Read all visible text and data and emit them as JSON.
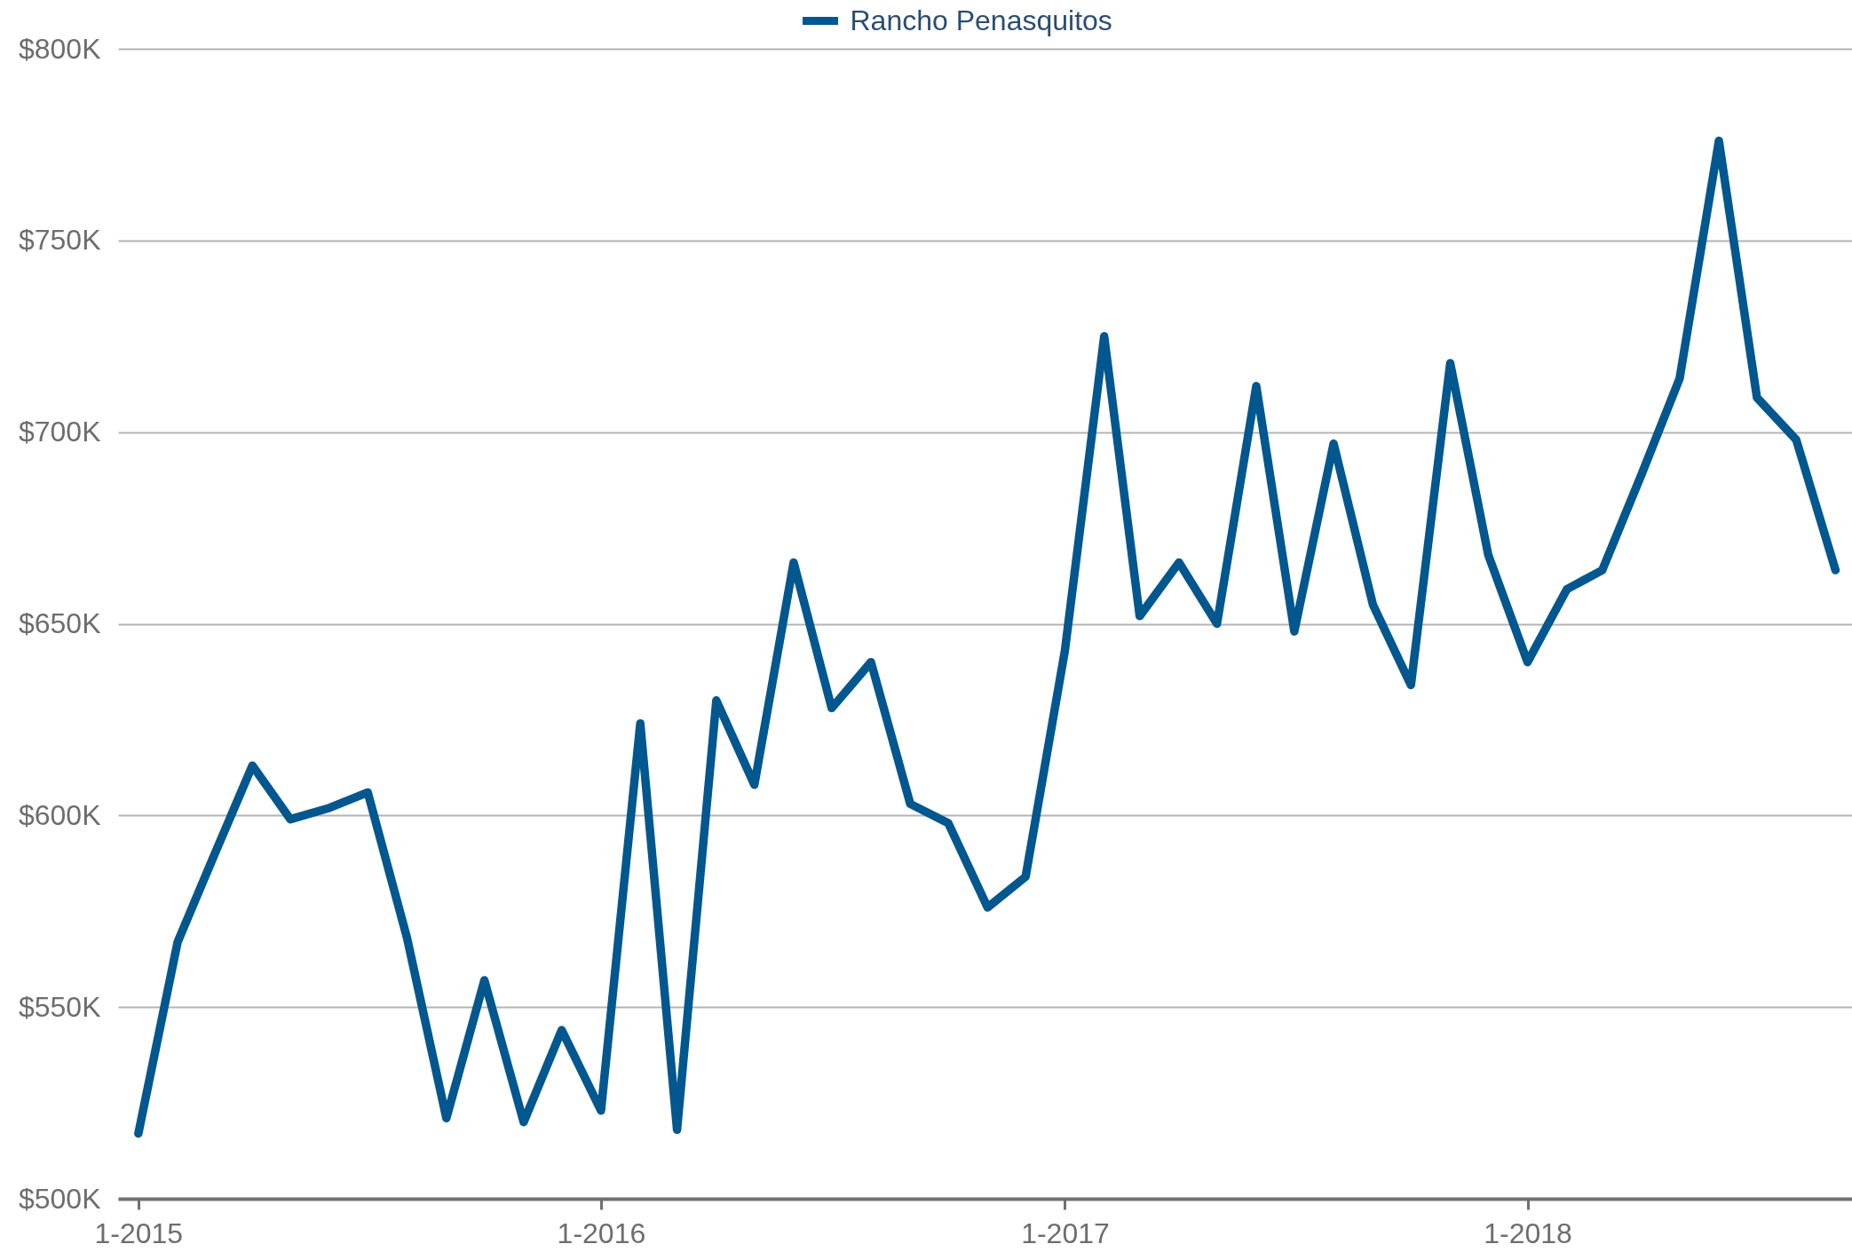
{
  "chart_data": {
    "type": "line",
    "x": [
      "2015-01",
      "2015-02",
      "2015-03",
      "2015-04",
      "2015-05",
      "2015-06",
      "2015-07",
      "2015-08",
      "2015-09",
      "2015-10",
      "2015-11",
      "2015-12",
      "2016-01",
      "2016-02",
      "2016-03",
      "2016-04",
      "2016-05",
      "2016-06",
      "2016-07",
      "2016-08",
      "2016-09",
      "2016-10",
      "2016-11",
      "2016-12",
      "2017-01",
      "2017-02",
      "2017-03",
      "2017-04",
      "2017-05",
      "2017-06",
      "2017-07",
      "2017-08",
      "2017-09",
      "2017-10",
      "2017-11",
      "2017-12",
      "2018-01",
      "2018-02",
      "2018-03",
      "2018-04",
      "2018-05",
      "2018-06",
      "2018-07",
      "2018-08",
      "2018-09"
    ],
    "series": [
      {
        "name": "Rancho Penasquitos",
        "color": "#02578f",
        "values": [
          517000,
          567000,
          589000,
          613000,
          599000,
          602000,
          606000,
          568000,
          521000,
          557000,
          520000,
          544000,
          523000,
          624000,
          518000,
          630000,
          608000,
          666000,
          628000,
          640000,
          603000,
          598000,
          576000,
          584000,
          643000,
          725000,
          652000,
          666000,
          650000,
          712000,
          648000,
          697000,
          655000,
          634000,
          718000,
          668000,
          640000,
          659000,
          664000,
          689000,
          714000,
          776000,
          709000,
          698000,
          664000
        ]
      }
    ],
    "xlim": [
      "2014-12-16",
      "2018-09-14"
    ],
    "xticks": [
      {
        "value": "2015-01",
        "label": "1-2015"
      },
      {
        "value": "2016-01",
        "label": "1-2016"
      },
      {
        "value": "2017-01",
        "label": "1-2017"
      },
      {
        "value": "2018-01",
        "label": "1-2018"
      }
    ],
    "ylim": [
      500000,
      800000
    ],
    "yticks": [
      {
        "value": 500000,
        "label": "$500K"
      },
      {
        "value": 550000,
        "label": "$550K"
      },
      {
        "value": 600000,
        "label": "$600K"
      },
      {
        "value": 650000,
        "label": "$650K"
      },
      {
        "value": 700000,
        "label": "$700K"
      },
      {
        "value": 750000,
        "label": "$750K"
      },
      {
        "value": 800000,
        "label": "$800K"
      }
    ],
    "grid": "y",
    "legend": "top"
  }
}
